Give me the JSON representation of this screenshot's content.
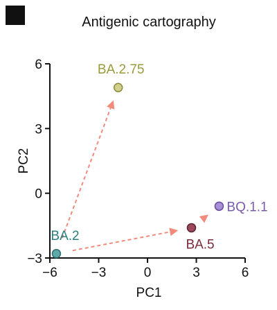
{
  "chart_data": {
    "type": "scatter",
    "title": "Antigenic cartography",
    "xlabel": "PC1",
    "ylabel": "PC2",
    "xlim": [
      -6,
      6
    ],
    "ylim": [
      -3,
      6
    ],
    "xticks": [
      -6,
      -3,
      0,
      3,
      6
    ],
    "yticks": [
      -3,
      0,
      3,
      6
    ],
    "xtick_labels": [
      "−6",
      "−3",
      "0",
      "3",
      "6"
    ],
    "ytick_labels": [
      "−3",
      "0",
      "3",
      "6"
    ],
    "grid": false,
    "points": [
      {
        "label": "BA.2",
        "x": -5.6,
        "y": -2.8,
        "fill": "#5fa8a8",
        "stroke": "#2a6f70",
        "label_color": "#2a8080"
      },
      {
        "label": "BA.2.75",
        "x": -1.8,
        "y": 4.9,
        "fill": "#d0d08a",
        "stroke": "#8a8a3a",
        "label_color": "#9a9a3a"
      },
      {
        "label": "BA.5",
        "x": 2.7,
        "y": -1.6,
        "fill": "#9a4a5a",
        "stroke": "#5e2030",
        "label_color": "#7a2a3a"
      },
      {
        "label": "BQ.1.1",
        "x": 4.4,
        "y": -0.6,
        "fill": "#a890d8",
        "stroke": "#6a4aa0",
        "label_color": "#7a5ab0"
      }
    ],
    "arrows": [
      {
        "from": "BA.2",
        "to": "BA.2.75",
        "color": "#f28b7c"
      },
      {
        "from": "BA.2",
        "to": "BA.5",
        "color": "#f28b7c"
      },
      {
        "from": "BA.5",
        "to": "BQ.1.1",
        "color": "#f28b7c"
      }
    ]
  }
}
